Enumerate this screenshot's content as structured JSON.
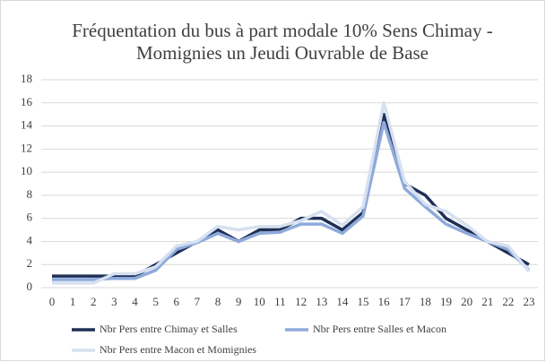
{
  "chart_data": {
    "type": "line",
    "title": [
      "Fréquentation du bus à part modale 10% Sens Chimay -",
      "Momignies un Jeudi Ouvrable de Base"
    ],
    "x": [
      0,
      1,
      2,
      3,
      4,
      5,
      6,
      7,
      8,
      9,
      10,
      11,
      12,
      13,
      14,
      15,
      16,
      17,
      18,
      19,
      20,
      21,
      22,
      23
    ],
    "xlim": [
      0,
      23
    ],
    "xticks": [
      0,
      1,
      2,
      3,
      4,
      5,
      6,
      7,
      8,
      9,
      10,
      11,
      12,
      13,
      14,
      15,
      16,
      17,
      18,
      19,
      20,
      21,
      22,
      23
    ],
    "ylim": [
      0,
      18
    ],
    "yticks": [
      0,
      2,
      4,
      6,
      8,
      10,
      12,
      14,
      16,
      18
    ],
    "grid": true,
    "legend": "bottom",
    "series": [
      {
        "name": "Nbr Pers entre Chimay et Salles",
        "color": "#1f2f55",
        "values": [
          1,
          1,
          1,
          1,
          1,
          2,
          3,
          4,
          5,
          4,
          5,
          5,
          6,
          6,
          5,
          6.5,
          15,
          9,
          8,
          6,
          5,
          4,
          3,
          2
        ]
      },
      {
        "name": "Nbr Pers entre Salles et Macon",
        "color": "#8eaadb",
        "values": [
          0.7,
          0.7,
          0.7,
          0.8,
          0.8,
          1.5,
          3.3,
          3.9,
          4.7,
          4,
          4.7,
          4.8,
          5.5,
          5.5,
          4.7,
          6.2,
          14.3,
          8.6,
          7,
          5.5,
          4.7,
          4,
          3.3,
          1.5
        ]
      },
      {
        "name": "Nbr Pers entre Macon et Momignies",
        "color": "#d6e0f0",
        "values": [
          0.4,
          0.4,
          0.4,
          1.2,
          1.2,
          1.8,
          3.6,
          4,
          5.3,
          5,
          5.3,
          5.3,
          5.8,
          6.6,
          5.4,
          7,
          16,
          9.2,
          7.2,
          6.6,
          5.4,
          4,
          3.6,
          1.4
        ]
      }
    ]
  }
}
